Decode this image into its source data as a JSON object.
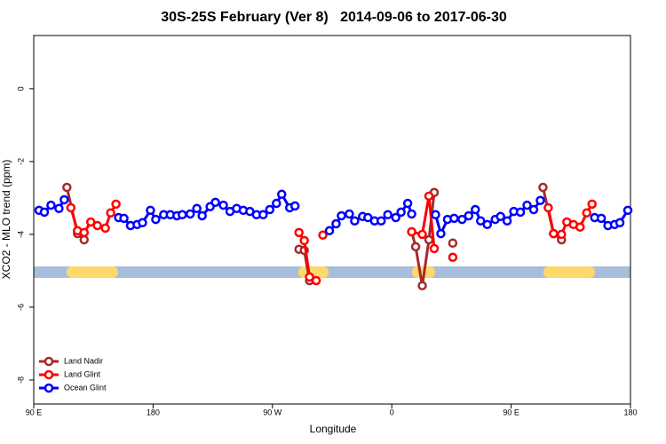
{
  "chart_data": {
    "type": "line",
    "title": "30S-25S February (Ver 8)   2014-09-06 to 2017-06-30",
    "x_label": "Longitude",
    "y_label": "XCO2 - MLO trend (ppm)",
    "xlim": [
      90,
      540
    ],
    "ylim": [
      -8.66,
      1.46
    ],
    "xticks": [
      {
        "value": 90,
        "label": "90 E"
      },
      180,
      {
        "value": 270,
        "label": "90 W"
      },
      {
        "value": 360,
        "label": "0"
      },
      {
        "value": 450,
        "label": "90 E"
      },
      {
        "value": 540,
        "label": "180"
      }
    ],
    "yticks": [
      0,
      -2,
      -4,
      -6,
      -8
    ],
    "legend": "bottom-left",
    "series": [
      {
        "name": "Land Nadir",
        "color": "#a52a2a",
        "x": [
          115,
          123,
          128,
          null,
          290,
          294,
          298,
          null,
          375,
          378,
          383,
          388,
          392,
          null,
          406,
          null,
          474,
          482,
          488
        ],
        "values": [
          -2.71,
          -3.98,
          -4.15,
          null,
          -4.41,
          -4.44,
          -5.27,
          null,
          -3.93,
          -4.34,
          -5.41,
          -4.15,
          -2.85,
          null,
          -4.24,
          null,
          -2.71,
          -3.98,
          -4.15
        ]
      },
      {
        "name": "Land Glint",
        "color": "#ff0000",
        "x": [
          118,
          123,
          128,
          133,
          138,
          144,
          148,
          152,
          null,
          290,
          294,
          298,
          303,
          null,
          308,
          null,
          375,
          383,
          388,
          392,
          null,
          406,
          null,
          478,
          482,
          488,
          492,
          497,
          502,
          507,
          511
        ],
        "values": [
          -3.27,
          -3.9,
          -3.95,
          -3.66,
          -3.76,
          -3.83,
          -3.41,
          -3.17,
          null,
          -3.95,
          -4.17,
          -5.17,
          -5.27,
          null,
          -4.02,
          null,
          -3.93,
          -4.0,
          -2.95,
          -4.39,
          null,
          -4.63,
          null,
          -3.27,
          -3.98,
          -4.0,
          -3.66,
          -3.73,
          -3.8,
          -3.41,
          -3.17
        ]
      },
      {
        "name": "Ocean Glint",
        "color": "#0000ff",
        "x": [
          94,
          98,
          103,
          109,
          113,
          null,
          154,
          158,
          163,
          168,
          172,
          178,
          182,
          188,
          193,
          198,
          202,
          208,
          213,
          217,
          223,
          227,
          233,
          238,
          243,
          248,
          253,
          258,
          263,
          268,
          273,
          277,
          283,
          287,
          null,
          313,
          318,
          322,
          328,
          332,
          338,
          342,
          347,
          352,
          357,
          363,
          367,
          372,
          375,
          null,
          393,
          397,
          402,
          407,
          413,
          418,
          423,
          427,
          432,
          438,
          442,
          447,
          452,
          457,
          462,
          467,
          472,
          null,
          513,
          518,
          523,
          528,
          532,
          538
        ],
        "values": [
          -3.34,
          -3.39,
          -3.2,
          -3.29,
          -3.05,
          null,
          -3.54,
          -3.56,
          -3.76,
          -3.73,
          -3.68,
          -3.34,
          -3.59,
          -3.46,
          -3.46,
          -3.49,
          -3.46,
          -3.44,
          -3.29,
          -3.49,
          -3.24,
          -3.12,
          -3.2,
          -3.37,
          -3.29,
          -3.34,
          -3.37,
          -3.46,
          -3.46,
          -3.32,
          -3.15,
          -2.9,
          -3.27,
          -3.22,
          null,
          -3.9,
          -3.71,
          -3.49,
          -3.44,
          -3.63,
          -3.51,
          -3.54,
          -3.63,
          -3.63,
          -3.46,
          -3.54,
          -3.39,
          -3.15,
          -3.44,
          null,
          -3.46,
          -3.98,
          -3.59,
          -3.56,
          -3.59,
          -3.49,
          -3.32,
          -3.63,
          -3.73,
          -3.59,
          -3.51,
          -3.63,
          -3.37,
          -3.39,
          -3.2,
          -3.32,
          -3.07,
          null,
          -3.54,
          -3.56,
          -3.76,
          -3.73,
          -3.68,
          -3.34
        ]
      }
    ]
  }
}
